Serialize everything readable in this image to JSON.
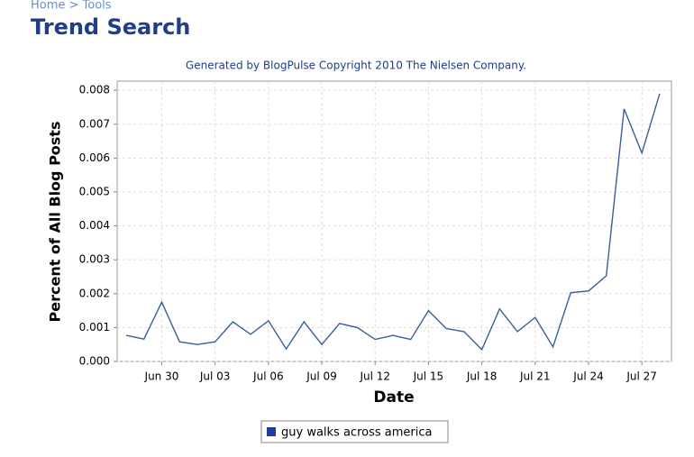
{
  "breadcrumb": "Home > Tools",
  "page_title": "Trend Search",
  "chart_data": {
    "type": "line",
    "title": "Generated by BlogPulse Copyright 2010 The Nielsen Company.",
    "x_label": "Date",
    "y_label": "Percent of All Blog Posts",
    "categories": [
      null,
      null,
      "Jun 30",
      null,
      null,
      "Jul 03",
      null,
      null,
      "Jul 06",
      null,
      null,
      "Jul 09",
      null,
      null,
      "Jul 12",
      null,
      null,
      "Jul 15",
      null,
      null,
      "Jul 18",
      null,
      null,
      "Jul 21",
      null,
      null,
      "Jul 24",
      null,
      null,
      "Jul 27",
      null
    ],
    "series": [
      {
        "name": "guy walks across america",
        "color": "#3a5e9c",
        "values": [
          0.00077,
          0.00066,
          0.00175,
          0.00058,
          0.0005,
          0.00058,
          0.00117,
          0.0008,
          0.0012,
          0.00037,
          0.00117,
          0.0005,
          0.00112,
          0.001,
          0.00065,
          0.00077,
          0.00065,
          0.0015,
          0.00097,
          0.00088,
          0.00035,
          0.00155,
          0.00088,
          0.0013,
          0.00043,
          0.00203,
          0.00208,
          0.00253,
          0.00745,
          0.00615,
          0.0079
        ]
      }
    ],
    "ylim": [
      0,
      0.00827
    ],
    "yticks": [
      {
        "value": 0,
        "label": "0.000"
      },
      {
        "value": 0.001,
        "label": "0.001"
      },
      {
        "value": 0.002,
        "label": "0.002"
      },
      {
        "value": 0.003,
        "label": "0.003"
      },
      {
        "value": 0.004,
        "label": "0.004"
      },
      {
        "value": 0.005,
        "label": "0.005"
      },
      {
        "value": 0.006,
        "label": "0.006"
      },
      {
        "value": 0.007,
        "label": "0.007"
      },
      {
        "value": 0.008,
        "label": "0.008"
      }
    ],
    "grid": true,
    "legend": "bottom"
  }
}
